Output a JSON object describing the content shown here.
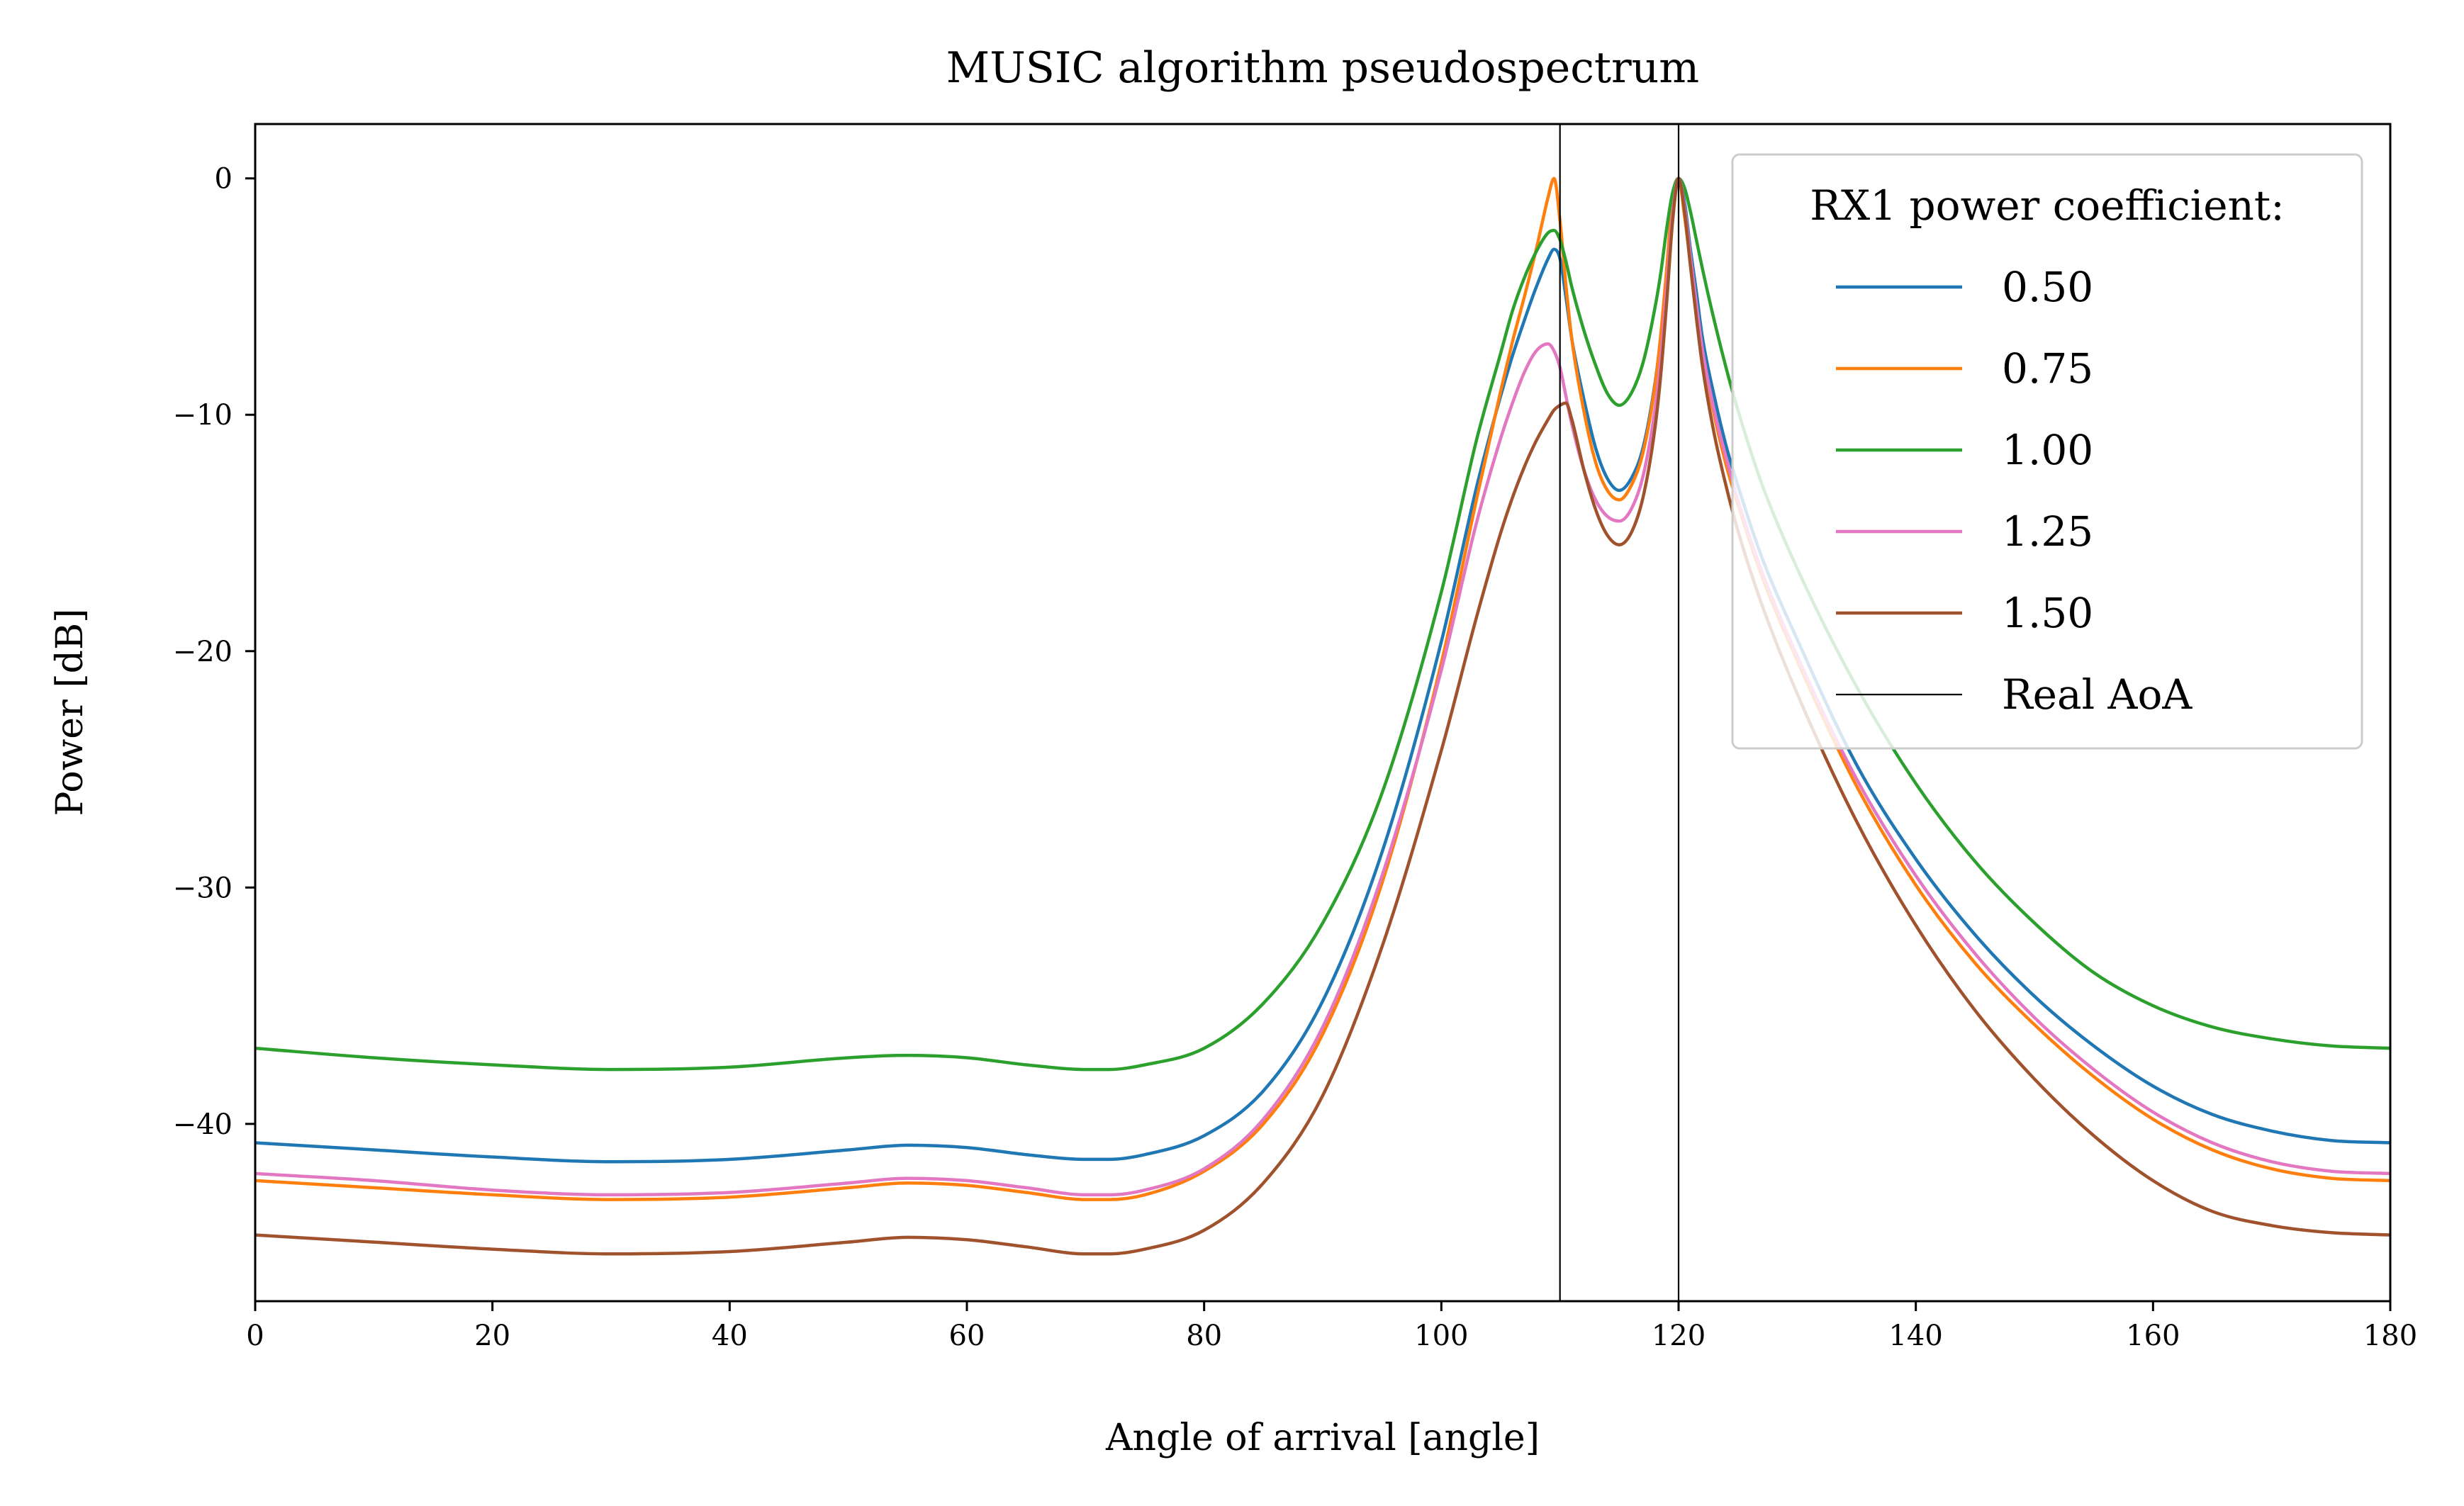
{
  "chart_data": {
    "type": "line",
    "title": "MUSIC algorithm pseudospectrum",
    "xlabel": "Angle of arrival [angle]",
    "ylabel": "Power [dB]",
    "xlim": [
      0,
      180
    ],
    "ylim": [
      -47.5,
      2.3
    ],
    "xticks": [
      0,
      20,
      40,
      60,
      80,
      100,
      120,
      140,
      160,
      180
    ],
    "xtick_labels": [
      "0",
      "20",
      "40",
      "60",
      "80",
      "100",
      "120",
      "140",
      "160",
      "180"
    ],
    "yticks": [
      0,
      -10,
      -20,
      -30,
      -40
    ],
    "ytick_labels": [
      "0",
      "−10",
      "−20",
      "−30",
      "−40"
    ],
    "grid": false,
    "legend": {
      "title": "RX1 power coefficient:",
      "position": "upper-right"
    },
    "real_aoa": {
      "label": "Real AoA",
      "angles": [
        110,
        120
      ],
      "color": "#000000"
    },
    "x": [
      0,
      10,
      20,
      30,
      40,
      50,
      55,
      60,
      65,
      70,
      72,
      75,
      80,
      85,
      90,
      95,
      100,
      103,
      105,
      106,
      107,
      108,
      109,
      109.5,
      110,
      110.5,
      111,
      112,
      113,
      114,
      115,
      116,
      117,
      118,
      118.5,
      119,
      119.5,
      120,
      120.5,
      121,
      121.5,
      122,
      123,
      124,
      125,
      127,
      130,
      135,
      140,
      145,
      150,
      155,
      160,
      165,
      170,
      175,
      180
    ],
    "series": [
      {
        "name": "0.50",
        "color": "#1f77b4",
        "values": [
          -40.8,
          -41.1,
          -41.4,
          -41.6,
          -41.5,
          -41.1,
          -40.9,
          -41.0,
          -41.3,
          -41.5,
          -41.5,
          -41.3,
          -40.5,
          -38.6,
          -34.8,
          -28.5,
          -19.6,
          -13.0,
          -9.2,
          -7.5,
          -6.0,
          -4.6,
          -3.4,
          -3.0,
          -3.4,
          -5.0,
          -6.8,
          -9.3,
          -11.4,
          -12.7,
          -13.2,
          -12.7,
          -11.4,
          -8.7,
          -6.7,
          -4.0,
          -1.6,
          0.0,
          -1.0,
          -3.0,
          -4.8,
          -6.7,
          -9.2,
          -11.3,
          -13.0,
          -16.0,
          -19.5,
          -24.8,
          -28.8,
          -32.0,
          -34.6,
          -36.7,
          -38.4,
          -39.6,
          -40.3,
          -40.7,
          -40.8
        ]
      },
      {
        "name": "0.75",
        "color": "#ff7f0e",
        "values": [
          -42.4,
          -42.7,
          -43.0,
          -43.2,
          -43.1,
          -42.7,
          -42.5,
          -42.6,
          -42.9,
          -43.2,
          -43.2,
          -43.0,
          -42.0,
          -40.0,
          -36.2,
          -29.8,
          -20.5,
          -13.5,
          -9.0,
          -6.9,
          -5.0,
          -3.0,
          -0.8,
          0.0,
          -1.8,
          -4.5,
          -6.8,
          -9.8,
          -12.0,
          -13.2,
          -13.6,
          -13.0,
          -11.6,
          -8.8,
          -6.6,
          -3.8,
          -0.8,
          0.0,
          -1.6,
          -3.6,
          -5.5,
          -7.3,
          -10.0,
          -12.1,
          -13.8,
          -16.8,
          -20.4,
          -25.7,
          -29.9,
          -33.2,
          -35.8,
          -38.0,
          -39.8,
          -41.1,
          -41.9,
          -42.3,
          -42.4
        ]
      },
      {
        "name": "1.00",
        "color": "#2ca02c",
        "values": [
          -36.8,
          -37.2,
          -37.5,
          -37.7,
          -37.6,
          -37.2,
          -37.1,
          -37.2,
          -37.5,
          -37.7,
          -37.7,
          -37.5,
          -36.8,
          -34.9,
          -31.5,
          -26.0,
          -17.5,
          -11.0,
          -7.4,
          -5.6,
          -4.2,
          -3.1,
          -2.3,
          -2.2,
          -2.6,
          -3.5,
          -4.6,
          -6.4,
          -7.9,
          -9.1,
          -9.6,
          -9.1,
          -7.8,
          -5.5,
          -4.0,
          -2.1,
          -0.6,
          0.0,
          -0.4,
          -1.4,
          -2.6,
          -3.8,
          -6.0,
          -8.0,
          -9.8,
          -12.9,
          -16.5,
          -21.5,
          -25.6,
          -28.9,
          -31.5,
          -33.6,
          -35.0,
          -35.9,
          -36.4,
          -36.7,
          -36.8
        ]
      },
      {
        "name": "1.25",
        "color": "#e377c2",
        "values": [
          -42.1,
          -42.4,
          -42.8,
          -43.0,
          -42.9,
          -42.5,
          -42.3,
          -42.4,
          -42.7,
          -43.0,
          -43.0,
          -42.8,
          -41.9,
          -39.8,
          -35.9,
          -29.5,
          -20.8,
          -14.5,
          -11.0,
          -9.5,
          -8.2,
          -7.3,
          -7.0,
          -7.3,
          -8.0,
          -9.2,
          -10.4,
          -12.3,
          -13.6,
          -14.3,
          -14.5,
          -14.0,
          -12.6,
          -9.8,
          -7.6,
          -4.6,
          -1.5,
          0.0,
          -1.2,
          -3.3,
          -5.3,
          -7.2,
          -9.8,
          -11.8,
          -13.6,
          -16.6,
          -20.2,
          -25.4,
          -29.5,
          -32.8,
          -35.5,
          -37.7,
          -39.5,
          -40.8,
          -41.6,
          -42.0,
          -42.1
        ]
      },
      {
        "name": "1.50",
        "color": "#a0522d",
        "values": [
          -44.7,
          -45.0,
          -45.3,
          -45.5,
          -45.4,
          -45.0,
          -44.8,
          -44.9,
          -45.2,
          -45.5,
          -45.5,
          -45.3,
          -44.5,
          -42.5,
          -38.8,
          -32.5,
          -24.2,
          -18.5,
          -15.0,
          -13.5,
          -12.2,
          -11.1,
          -10.2,
          -9.8,
          -9.6,
          -9.5,
          -10.2,
          -12.3,
          -14.0,
          -15.1,
          -15.5,
          -15.0,
          -13.5,
          -10.6,
          -8.3,
          -5.2,
          -1.8,
          0.0,
          -1.4,
          -3.7,
          -5.9,
          -7.9,
          -10.8,
          -13.0,
          -14.9,
          -18.0,
          -21.8,
          -27.2,
          -31.6,
          -35.2,
          -38.1,
          -40.5,
          -42.4,
          -43.7,
          -44.3,
          -44.6,
          -44.7
        ]
      }
    ]
  }
}
